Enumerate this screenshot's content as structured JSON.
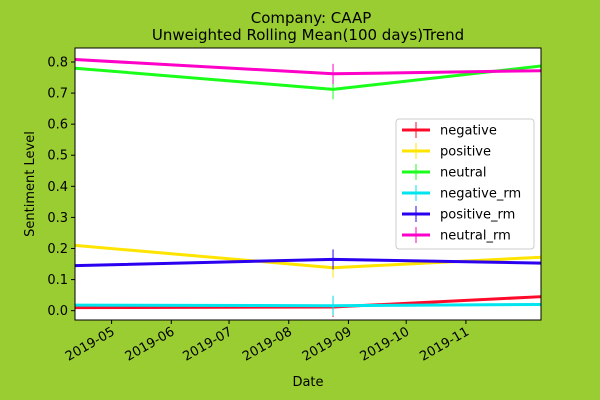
{
  "figure": {
    "title_line1": "Company: CAAP",
    "title_line2": "Unweighted Rolling Mean(100 days)Trend",
    "background": "#9ACD32",
    "plot_background": "#FFFFFF"
  },
  "chart_data": {
    "type": "line",
    "title": "Company: CAAP\nUnweighted Rolling Mean(100 days)Trend",
    "xlabel": "Date",
    "ylabel": "Sentiment Level",
    "x": [
      "2019-04-12",
      "2019-08-24",
      "2019-12-10"
    ],
    "xlim": [
      "2019-04-12",
      "2019-12-10"
    ],
    "ylim": [
      -0.03,
      0.845
    ],
    "xticks": [
      "2019-05",
      "2019-06",
      "2019-07",
      "2019-08",
      "2019-09",
      "2019-10",
      "2019-11"
    ],
    "yticks": [
      "0.0",
      "0.1",
      "0.2",
      "0.3",
      "0.4",
      "0.5",
      "0.6",
      "0.7",
      "0.8"
    ],
    "grid": false,
    "legend_position": "center-right",
    "series": [
      {
        "name": "negative",
        "color": "#FF0A2A",
        "values": [
          0.01,
          0.012,
          0.045
        ]
      },
      {
        "name": "positive",
        "color": "#FFE400",
        "values": [
          0.21,
          0.138,
          0.172
        ]
      },
      {
        "name": "neutral",
        "color": "#1AFF1A",
        "values": [
          0.78,
          0.712,
          0.787
        ]
      },
      {
        "name": "negative_rm",
        "color": "#00E5EE",
        "values": [
          0.018,
          0.016,
          0.02
        ]
      },
      {
        "name": "positive_rm",
        "color": "#2B00F0",
        "values": [
          0.145,
          0.165,
          0.153
        ]
      },
      {
        "name": "neutral_rm",
        "color": "#FF00C8",
        "values": [
          0.808,
          0.762,
          0.772
        ]
      }
    ]
  }
}
